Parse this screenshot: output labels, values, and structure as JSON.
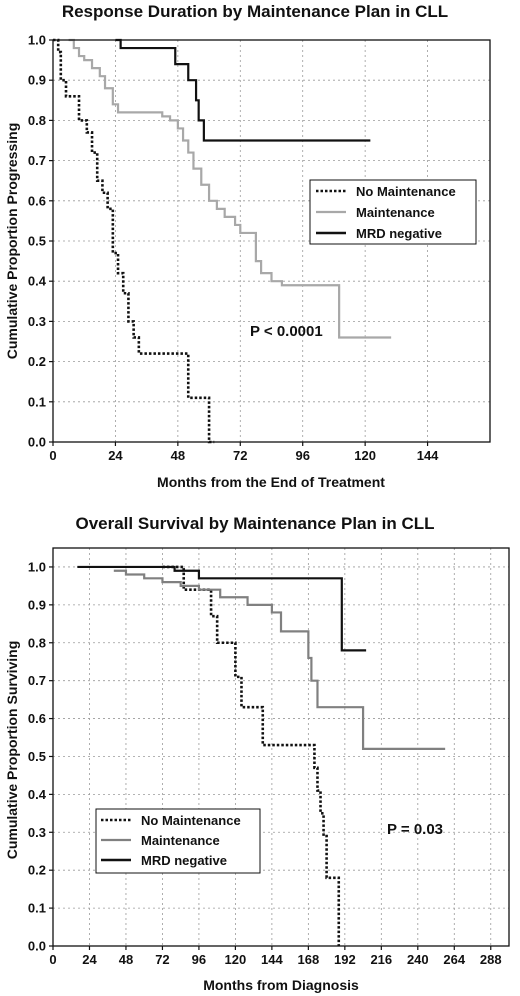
{
  "chart_data": [
    {
      "type": "line",
      "step": true,
      "title": "Response Duration by Maintenance Plan in CLL",
      "xlabel": "Months from the End of Treatment",
      "ylabel": "Cumulative Proportion Progressing",
      "xlim": [
        0,
        168
      ],
      "ylim": [
        0,
        1
      ],
      "xticks": [
        "0",
        "24",
        "48",
        "72",
        "96",
        "120",
        "144"
      ],
      "xtick_values": [
        0,
        24,
        48,
        72,
        96,
        120,
        144
      ],
      "yticks": [
        "0.0",
        "0.1",
        "0.2",
        "0.3",
        "0.4",
        "0.5",
        "0.6",
        "0.7",
        "0.8",
        "0.9",
        "1.0"
      ],
      "grid": true,
      "legend_position": "center-right",
      "annotation": "P < 0.0001",
      "series": [
        {
          "name": "No Maintenance",
          "style": "dotted",
          "color": "#111111",
          "x": [
            0,
            2,
            3,
            5,
            7,
            10,
            13,
            15,
            17,
            19,
            21,
            23,
            24,
            25,
            27,
            29,
            31,
            33,
            35,
            52,
            54,
            60,
            62
          ],
          "y": [
            1.0,
            0.97,
            0.9,
            0.86,
            0.86,
            0.8,
            0.77,
            0.72,
            0.65,
            0.62,
            0.58,
            0.47,
            0.47,
            0.42,
            0.37,
            0.3,
            0.26,
            0.22,
            0.22,
            0.11,
            0.11,
            0.0,
            0.0
          ]
        },
        {
          "name": "Maintenance",
          "style": "solid",
          "color": "#a8a8a8",
          "x": [
            6,
            8,
            10,
            12,
            15,
            18,
            20,
            23,
            25,
            38,
            42,
            45,
            48,
            50,
            52,
            54,
            57,
            60,
            63,
            66,
            70,
            72,
            75,
            78,
            80,
            84,
            88,
            110,
            130
          ],
          "y": [
            1.0,
            0.98,
            0.96,
            0.95,
            0.93,
            0.91,
            0.88,
            0.84,
            0.82,
            0.82,
            0.81,
            0.8,
            0.78,
            0.75,
            0.72,
            0.68,
            0.64,
            0.6,
            0.58,
            0.56,
            0.54,
            0.52,
            0.52,
            0.45,
            0.42,
            0.4,
            0.39,
            0.26,
            0.26
          ]
        },
        {
          "name": "MRD negative",
          "style": "solid",
          "color": "#111111",
          "x": [
            24,
            26,
            38,
            47,
            52,
            55,
            56,
            58,
            122
          ],
          "y": [
            1.0,
            0.98,
            0.98,
            0.94,
            0.9,
            0.85,
            0.8,
            0.75,
            0.75
          ]
        }
      ]
    },
    {
      "type": "line",
      "step": true,
      "title": "Overall Survival by Maintenance Plan in CLL",
      "xlabel": "Months from Diagnosis",
      "ylabel": "Cumulative Proportion Surviving",
      "xlim": [
        0,
        300
      ],
      "ylim": [
        0,
        1.05
      ],
      "xticks": [
        "0",
        "24",
        "48",
        "72",
        "96",
        "120",
        "144",
        "168",
        "192",
        "216",
        "240",
        "264",
        "288"
      ],
      "xtick_values": [
        0,
        24,
        48,
        72,
        96,
        120,
        144,
        168,
        192,
        216,
        240,
        264,
        288
      ],
      "yticks": [
        "0.0",
        "0.1",
        "0.2",
        "0.3",
        "0.4",
        "0.5",
        "0.6",
        "0.7",
        "0.8",
        "0.9",
        "1.0"
      ],
      "grid": true,
      "legend_position": "bottom-left",
      "annotation": "P = 0.03",
      "series": [
        {
          "name": "No Maintenance",
          "style": "dotted",
          "color": "#111111",
          "x": [
            72,
            84,
            86,
            100,
            104,
            108,
            112,
            120,
            124,
            134,
            138,
            170,
            172,
            174,
            176,
            178,
            180,
            186,
            188
          ],
          "y": [
            1.0,
            1.0,
            0.94,
            0.94,
            0.87,
            0.8,
            0.8,
            0.71,
            0.63,
            0.63,
            0.53,
            0.53,
            0.47,
            0.41,
            0.35,
            0.29,
            0.18,
            0.18,
            0.0
          ]
        },
        {
          "name": "Maintenance",
          "style": "solid",
          "color": "#808080",
          "x": [
            40,
            48,
            60,
            72,
            84,
            96,
            110,
            128,
            144,
            150,
            162,
            168,
            170,
            174,
            204,
            258
          ],
          "y": [
            0.99,
            0.98,
            0.97,
            0.96,
            0.95,
            0.94,
            0.92,
            0.9,
            0.88,
            0.83,
            0.83,
            0.76,
            0.7,
            0.63,
            0.52,
            0.52
          ]
        },
        {
          "name": "MRD negative",
          "style": "solid",
          "color": "#111111",
          "x": [
            16,
            60,
            80,
            96,
            186,
            190,
            206
          ],
          "y": [
            1.0,
            1.0,
            0.99,
            0.97,
            0.97,
            0.78,
            0.78
          ]
        }
      ]
    }
  ]
}
